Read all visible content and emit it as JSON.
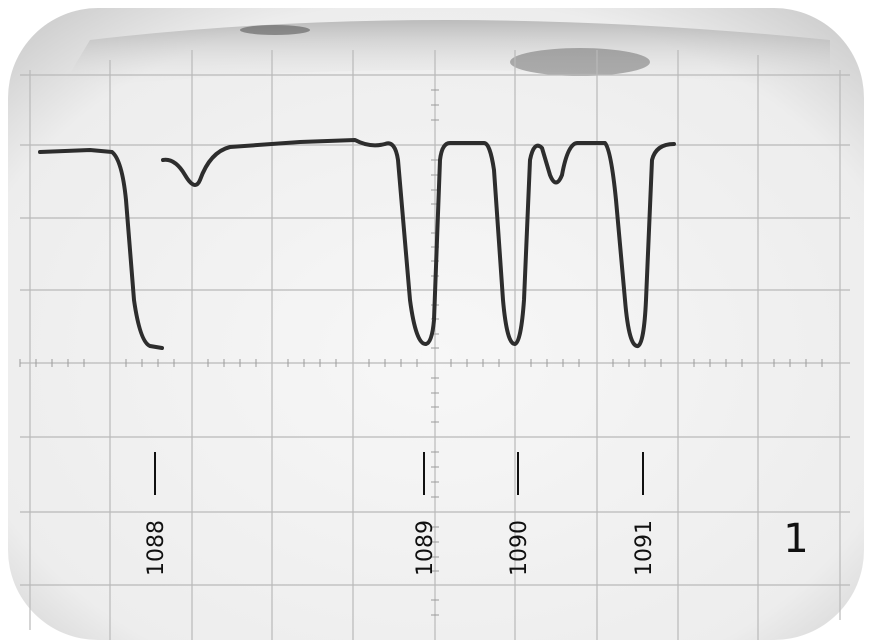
{
  "markers": [
    {
      "label": "1088"
    },
    {
      "label": "1089"
    },
    {
      "label": "1090"
    },
    {
      "label": "1091"
    }
  ],
  "panel_label": "1"
}
